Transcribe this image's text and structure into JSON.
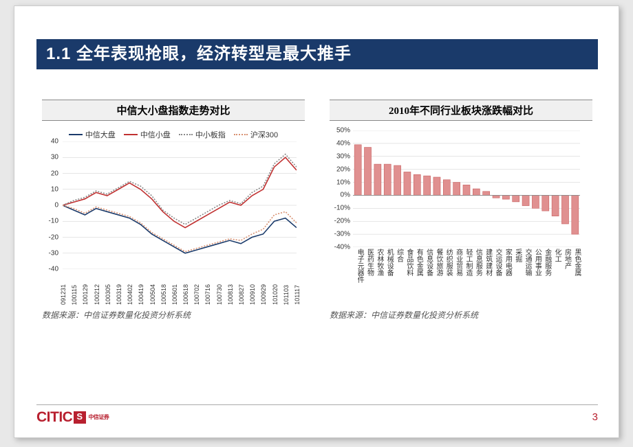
{
  "slide": {
    "title": "1.1 全年表现抢眼，经济转型是最大推手",
    "title_bg": "#1a3a6a",
    "title_color": "#ffffff",
    "page_number": "3",
    "page_number_color": "#b8202f",
    "logo_text": "CITIC",
    "logo_cn": "中信证券",
    "logo_color": "#b8202f"
  },
  "line_chart": {
    "type": "line",
    "title": "中信大小盘指数走势对比",
    "source": "数据来源：中信证券数量化投资分析系统",
    "legend": [
      {
        "label": "中信大盘",
        "color": "#1a3a6a",
        "style": "solid"
      },
      {
        "label": "中信小盘",
        "color": "#c03030",
        "style": "solid"
      },
      {
        "label": "中小板指",
        "color": "#888888",
        "style": "dashed"
      },
      {
        "label": "沪深300",
        "color": "#d89070",
        "style": "dashed"
      }
    ],
    "ylim": [
      -40,
      40
    ],
    "ytick_step": 10,
    "grid_color": "#cccccc",
    "background_color": "#ffffff",
    "x_labels": [
      "091231",
      "100115",
      "100129",
      "100212",
      "100305",
      "100319",
      "100402",
      "100419",
      "100504",
      "100518",
      "100601",
      "100618",
      "100702",
      "100716",
      "100730",
      "100813",
      "100827",
      "100910",
      "100929",
      "101020",
      "101103",
      "101117"
    ],
    "series": {
      "中信大盘": [
        0,
        -3,
        -6,
        -2,
        -4,
        -6,
        -8,
        -12,
        -18,
        -22,
        -26,
        -30,
        -28,
        -26,
        -24,
        -22,
        -24,
        -20,
        -18,
        -10,
        -8,
        -14
      ],
      "中信小盘": [
        0,
        2,
        4,
        8,
        6,
        10,
        14,
        10,
        4,
        -4,
        -10,
        -14,
        -10,
        -6,
        -2,
        2,
        0,
        6,
        10,
        24,
        30,
        22
      ],
      "中小板指": [
        0,
        3,
        5,
        9,
        7,
        11,
        15,
        12,
        6,
        -3,
        -8,
        -12,
        -8,
        -4,
        0,
        3,
        1,
        8,
        12,
        26,
        32,
        24
      ],
      "沪深300": [
        0,
        -2,
        -5,
        -1,
        -3,
        -5,
        -7,
        -11,
        -17,
        -21,
        -25,
        -29,
        -27,
        -25,
        -23,
        -21,
        -22,
        -18,
        -15,
        -6,
        -4,
        -11
      ]
    }
  },
  "bar_chart": {
    "type": "bar",
    "title": "2010年不同行业板块涨跌幅对比",
    "source": "数据来源：中信证券数量化投资分析系统",
    "ylim": [
      -40,
      50
    ],
    "ytick_step": 10,
    "y_suffix": "%",
    "bar_color": "#e09090",
    "bar_border": "#c86060",
    "grid_color": "#cccccc",
    "background_color": "#ffffff",
    "bar_width": 0.7,
    "categories": [
      "电子元器件",
      "医药生物",
      "农林牧渔",
      "机械设备",
      "综合",
      "食品饮料",
      "有色金属",
      "信息设备",
      "餐饮旅游",
      "纺织服装",
      "商业贸易",
      "轻工制造",
      "信息服务",
      "建筑建材",
      "交运设备",
      "家用电器",
      "采掘",
      "交通运输",
      "公用事业",
      "金融服务",
      "化工",
      "房地产",
      "黑色金属"
    ],
    "values": [
      39,
      37,
      24,
      24,
      23,
      18,
      16,
      15,
      14,
      12,
      10,
      8,
      5,
      3,
      -2,
      -3,
      -5,
      -8,
      -10,
      -12,
      -16,
      -22,
      -30
    ]
  }
}
